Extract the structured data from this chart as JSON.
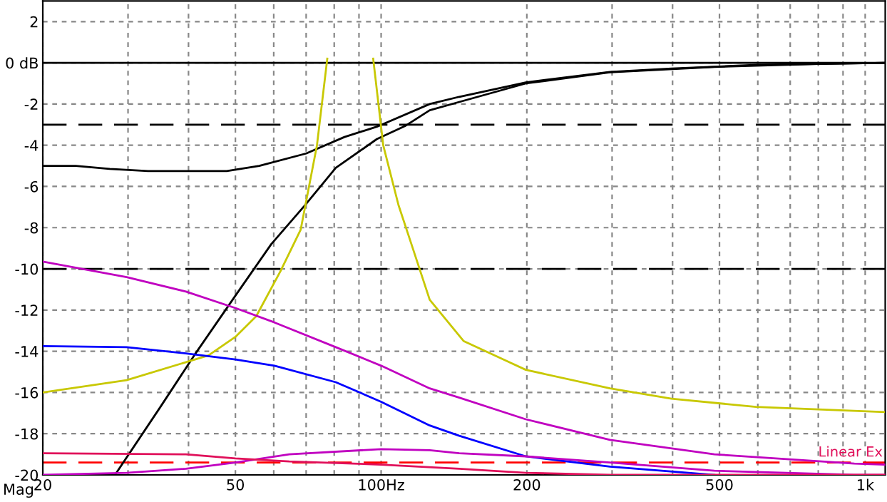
{
  "chart_data": {
    "type": "line",
    "ylabel": "Mag",
    "log": "x",
    "grid": true,
    "legend": false,
    "marker": "none",
    "line_style": "solid",
    "xlim": [
      20,
      1100
    ],
    "ylim": [
      -20,
      3
    ],
    "xticks": [
      20,
      {
        "value": 30,
        "label": null
      },
      {
        "value": 40,
        "label": null
      },
      50,
      {
        "value": 60,
        "label": null
      },
      {
        "value": 70,
        "label": null
      },
      {
        "value": 80,
        "label": null
      },
      {
        "value": 90,
        "label": null
      },
      {
        "value": 100,
        "label": "100Hz"
      },
      200,
      {
        "value": 300,
        "label": null
      },
      {
        "value": 400,
        "label": null
      },
      500,
      {
        "value": 600,
        "label": null
      },
      {
        "value": 700,
        "label": null
      },
      {
        "value": 800,
        "label": null
      },
      {
        "value": 900,
        "label": null
      },
      {
        "value": 1000,
        "label": "1k"
      }
    ],
    "yticks": [
      2,
      {
        "value": 0,
        "label": "0 dB"
      },
      -2,
      -4,
      -6,
      -8,
      -10,
      -12,
      -14,
      -16,
      -18,
      -20
    ],
    "ref_lines": [
      {
        "axis": "y",
        "value": 0,
        "color": "#000000",
        "line_style": "solid"
      },
      {
        "axis": "y",
        "value": -3,
        "color": "#000000",
        "line_style": "dashed"
      },
      {
        "axis": "y",
        "value": -10,
        "color": "#000000",
        "line_style": "dashed"
      },
      {
        "axis": "y",
        "value": -19.4,
        "color": "#ff0000",
        "line_style": "dashed",
        "label": "Linear Ex"
      }
    ],
    "series": [
      {
        "color": "#000000",
        "x": [
          20,
          23.4,
          27.5,
          33,
          48,
          56,
          70,
          84,
          98,
          126,
          145,
          199,
          297,
          398,
          488,
          600,
          800,
          1100
        ],
        "values": [
          -5.0,
          -5.0,
          -5.15,
          -5.25,
          -5.25,
          -5.0,
          -4.4,
          -3.6,
          -3.1,
          -2.0,
          -1.65,
          -0.95,
          -0.44,
          -0.28,
          -0.19,
          -0.1,
          -0.05,
          0
        ]
      },
      {
        "color": "#000000",
        "x": [
          28.2,
          35,
          41.1,
          50,
          59.3,
          69.4,
          80.6,
          98,
          112,
          126,
          145,
          199,
          297,
          488,
          800,
          1100
        ],
        "values": [
          -20,
          -16.7,
          -14.2,
          -11.3,
          -8.8,
          -6.95,
          -5.1,
          -3.7,
          -3.07,
          -2.3,
          -1.9,
          -1.0,
          -0.46,
          -0.2,
          -0.05,
          0
        ]
      },
      {
        "color": "#c8c800",
        "x": [
          20,
          29.8,
          44,
          50,
          55.2,
          62,
          68.2,
          73.7,
          77.4,
          78.9,
          86,
          94.4,
          96.3,
          101,
          108.6,
          115.5,
          126,
          148,
          199,
          297,
          398,
          595,
          1093
        ],
        "values": [
          -16,
          -15.4,
          -14.2,
          -13.3,
          -12.3,
          -10.1,
          -8.1,
          -4.0,
          0.2,
          null,
          null,
          null,
          0.2,
          -4.0,
          -6.9,
          -8.8,
          -11.5,
          -13.5,
          -14.9,
          -15.8,
          -16.3,
          -16.7,
          -16.95
        ]
      },
      {
        "color": "#c000c0",
        "x": [
          20,
          29.8,
          39.5,
          50,
          60.2,
          80.6,
          100,
          126,
          145,
          199,
          297,
          488,
          950,
          1100
        ],
        "values": [
          -9.65,
          -10.4,
          -11.1,
          -11.9,
          -12.6,
          -13.8,
          -14.7,
          -15.8,
          -16.25,
          -17.3,
          -18.3,
          -19.0,
          -19.45,
          -19.5
        ]
      },
      {
        "color": "#0000ff",
        "x": [
          20,
          29.8,
          39.5,
          50,
          60.2,
          80.6,
          100,
          126,
          145,
          199,
          297,
          488
        ],
        "values": [
          -13.75,
          -13.8,
          -14.1,
          -14.4,
          -14.7,
          -15.5,
          -16.45,
          -17.6,
          -18.1,
          -19.1,
          -19.6,
          -20
        ]
      },
      {
        "color": "#c000c0",
        "x": [
          20,
          29.8,
          39.5,
          50,
          64.6,
          100,
          126,
          145,
          199,
          297,
          488,
          950,
          1100
        ],
        "values": [
          -20,
          -19.9,
          -19.7,
          -19.4,
          -19.0,
          -18.75,
          -18.8,
          -18.95,
          -19.1,
          -19.4,
          -19.8,
          -20,
          -20
        ]
      },
      {
        "color": "#e0105a",
        "x": [
          20,
          39.5,
          50,
          64.6,
          100,
          145,
          199,
          297,
          1100
        ],
        "values": [
          -18.95,
          -19.0,
          -19.2,
          -19.35,
          -19.5,
          -19.7,
          -19.9,
          -20,
          -20
        ]
      }
    ]
  }
}
